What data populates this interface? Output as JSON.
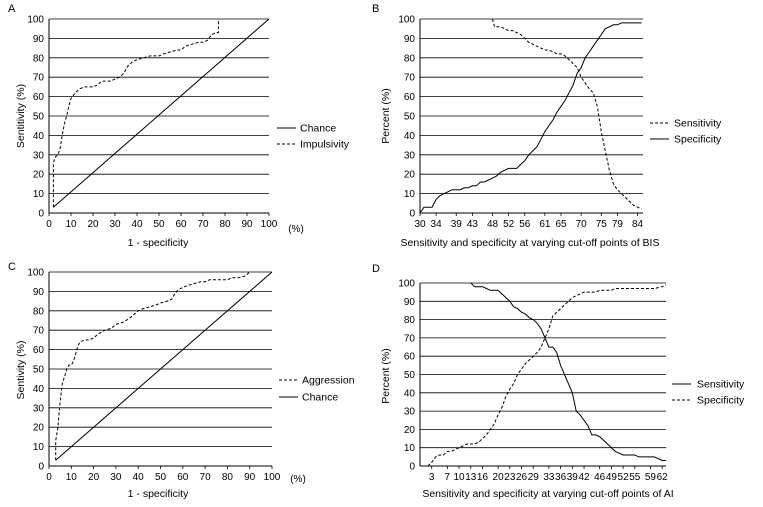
{
  "chart_data": [
    {
      "type": "line",
      "panel_label": "A",
      "xlabel": "1 - specificity",
      "x_unit": "(%)",
      "ylabel": "Sentitivity (%)",
      "xlim": [
        0,
        100
      ],
      "ylim": [
        0,
        100
      ],
      "xticks": [
        "0",
        "10",
        "20",
        "30",
        "40",
        "50",
        "60",
        "70",
        "80",
        "90",
        "100"
      ],
      "yticks": [
        "0",
        "10",
        "20",
        "30",
        "40",
        "50",
        "60",
        "70",
        "80",
        "90",
        "100"
      ],
      "grid": "horizontal",
      "legend_position": "right",
      "series": [
        {
          "name": "Chance",
          "style": "solid",
          "x": [
            2,
            100
          ],
          "y": [
            3,
            100
          ]
        },
        {
          "name": "Impulsivity",
          "style": "dashed",
          "x": [
            2,
            2,
            3,
            4,
            5,
            6,
            7,
            8,
            9,
            10,
            12,
            14,
            16,
            18,
            20,
            22,
            24,
            26,
            28,
            30,
            32,
            34,
            36,
            38,
            40,
            43,
            46,
            50,
            52,
            55,
            58,
            60,
            62,
            65,
            68,
            70,
            72,
            74,
            76,
            77,
            77
          ],
          "y": [
            3,
            26,
            29,
            30,
            33,
            40,
            46,
            50,
            55,
            59,
            62,
            64,
            65,
            65,
            65,
            66,
            68,
            68,
            68,
            69,
            70,
            72,
            76,
            78,
            79,
            80,
            81,
            81,
            82,
            83,
            84,
            84,
            86,
            87,
            88,
            88,
            89,
            92,
            93,
            93,
            100
          ]
        }
      ]
    },
    {
      "type": "line",
      "panel_label": "B",
      "xlabel": "Sensitivity and specificity at varying cut-off points of BIS",
      "ylabel": "Percent (%)",
      "ylim": [
        0,
        100
      ],
      "xticks": [
        "30",
        "34",
        "39",
        "43",
        "48",
        "52",
        "56",
        "61",
        "65",
        "70",
        "75",
        "79",
        "84"
      ],
      "yticks": [
        "0",
        "10",
        "20",
        "30",
        "40",
        "50",
        "60",
        "70",
        "80",
        "90",
        "100"
      ],
      "grid": "horizontal",
      "legend_position": "right",
      "series": [
        {
          "name": "Sensitivity",
          "style": "dashed",
          "x": [
            48,
            48.5,
            50,
            51,
            52,
            53,
            54,
            55,
            56,
            57,
            58,
            59,
            60,
            61,
            62,
            63,
            64,
            65,
            66,
            67,
            68,
            69,
            70,
            71,
            72,
            73,
            74,
            75,
            76,
            77,
            78,
            79,
            80,
            81,
            82,
            83,
            84,
            85
          ],
          "y": [
            100,
            96,
            96,
            95,
            94,
            94,
            93,
            92,
            90,
            88,
            87,
            86,
            85,
            84,
            84,
            83,
            82,
            82,
            81,
            79,
            77,
            75,
            70,
            67,
            64,
            62,
            55,
            42,
            32,
            22,
            15,
            12,
            10,
            8,
            6,
            4,
            3,
            2
          ]
        },
        {
          "name": "Specificity",
          "style": "solid",
          "x": [
            30,
            31,
            32,
            33,
            34,
            35,
            36,
            37,
            38,
            39,
            40,
            41,
            42,
            43,
            44,
            45,
            46,
            47,
            48,
            49,
            50,
            51,
            52,
            53,
            54,
            55,
            56,
            57,
            58,
            59,
            60,
            61,
            62,
            63,
            64,
            65,
            66,
            67,
            68,
            69,
            70,
            71,
            72,
            73,
            74,
            75,
            76,
            77,
            78,
            79,
            80,
            81,
            82,
            83,
            84,
            85
          ],
          "y": [
            0,
            3,
            3,
            3,
            7,
            9,
            10,
            11,
            12,
            12,
            12,
            13,
            13,
            14,
            14,
            16,
            16,
            17,
            18,
            19,
            21,
            22,
            23,
            23,
            23,
            25,
            27,
            30,
            32,
            34,
            38,
            42,
            45,
            48,
            52,
            55,
            58,
            62,
            66,
            72,
            75,
            80,
            83,
            86,
            89,
            92,
            95,
            96,
            97,
            97,
            98,
            98,
            98,
            98,
            98,
            98
          ]
        }
      ]
    },
    {
      "type": "line",
      "panel_label": "C",
      "xlabel": "1 - specificity",
      "x_unit": "(%)",
      "ylabel": "Sentivity (%)",
      "xlim": [
        0,
        100
      ],
      "ylim": [
        0,
        100
      ],
      "xticks": [
        "0",
        "10",
        "20",
        "30",
        "40",
        "50",
        "60",
        "70",
        "80",
        "90",
        "100"
      ],
      "yticks": [
        "0",
        "10",
        "20",
        "30",
        "40",
        "50",
        "60",
        "70",
        "80",
        "90",
        "100"
      ],
      "grid": "horizontal",
      "legend_position": "right",
      "series": [
        {
          "name": "Aggression",
          "style": "dashed",
          "x": [
            3,
            3,
            4,
            5,
            6,
            7,
            8,
            9,
            10,
            11,
            12,
            13,
            14,
            16,
            18,
            20,
            22,
            25,
            28,
            30,
            33,
            36,
            38,
            40,
            42,
            45,
            48,
            50,
            53,
            55,
            56,
            58,
            60,
            62,
            65,
            68,
            70,
            72,
            75,
            78,
            80,
            82,
            85,
            88,
            90
          ],
          "y": [
            3,
            13,
            20,
            33,
            43,
            46,
            50,
            52,
            52,
            54,
            58,
            62,
            64,
            65,
            65,
            66,
            68,
            70,
            71,
            73,
            74,
            76,
            78,
            80,
            81,
            82,
            83,
            84,
            85,
            86,
            88,
            91,
            92,
            93,
            94,
            95,
            95,
            96,
            96,
            96,
            96,
            97,
            97,
            98,
            100
          ]
        },
        {
          "name": "Chance",
          "style": "solid",
          "x": [
            3,
            100
          ],
          "y": [
            3,
            100
          ]
        }
      ]
    },
    {
      "type": "line",
      "panel_label": "D",
      "xlabel": "Sensitivity and specificity at varying cut-off points of AI",
      "ylabel": "Percent (%)",
      "ylim": [
        0,
        100
      ],
      "xticks": [
        "3",
        "7",
        "10",
        "13",
        "16",
        "20",
        "23",
        "26",
        "29",
        "33",
        "36",
        "39",
        "42",
        "46",
        "49",
        "52",
        "55",
        "59",
        "62"
      ],
      "yticks": [
        "0",
        "10",
        "20",
        "30",
        "40",
        "50",
        "60",
        "70",
        "80",
        "90",
        "100"
      ],
      "grid": "horizontal",
      "legend_position": "right",
      "series": [
        {
          "name": "Sensitivity",
          "style": "solid",
          "x": [
            13,
            14,
            15,
            16,
            17,
            18,
            19,
            20,
            21,
            22,
            23,
            24,
            25,
            26,
            27,
            28,
            29,
            30,
            31,
            32,
            33,
            34,
            35,
            36,
            37,
            38,
            39,
            40,
            41,
            42,
            43,
            44,
            45,
            46,
            47,
            48,
            49,
            50,
            51,
            52,
            53,
            54,
            55,
            56,
            57,
            58,
            59,
            60,
            61,
            62,
            63
          ],
          "y": [
            100,
            98,
            98,
            98,
            97,
            96,
            96,
            96,
            94,
            92,
            90,
            87,
            86,
            84,
            83,
            81,
            80,
            78,
            75,
            70,
            65,
            65,
            62,
            55,
            50,
            45,
            40,
            30,
            28,
            25,
            22,
            17,
            17,
            16,
            14,
            12,
            10,
            8,
            7,
            6,
            6,
            6,
            6,
            5,
            5,
            5,
            5,
            5,
            4,
            3,
            3
          ]
        },
        {
          "name": "Specificity",
          "style": "dashed",
          "x": [
            2,
            3,
            4,
            5,
            6,
            7,
            8,
            9,
            10,
            11,
            12,
            13,
            14,
            15,
            16,
            17,
            18,
            19,
            20,
            21,
            22,
            23,
            24,
            25,
            26,
            27,
            28,
            29,
            30,
            31,
            32,
            33,
            34,
            35,
            36,
            37,
            38,
            39,
            40,
            41,
            42,
            43,
            44,
            45,
            46,
            47,
            48,
            49,
            50,
            52,
            54,
            56,
            58,
            60,
            62,
            63
          ],
          "y": [
            0,
            2,
            5,
            6,
            6,
            8,
            8,
            9,
            10,
            11,
            12,
            12,
            12,
            13,
            15,
            17,
            20,
            23,
            28,
            32,
            38,
            42,
            45,
            50,
            53,
            56,
            58,
            60,
            62,
            65,
            70,
            75,
            82,
            84,
            86,
            88,
            90,
            92,
            93,
            94,
            95,
            95,
            95,
            95,
            96,
            96,
            96,
            96,
            97,
            97,
            97,
            97,
            97,
            97,
            98,
            99
          ]
        }
      ]
    }
  ]
}
